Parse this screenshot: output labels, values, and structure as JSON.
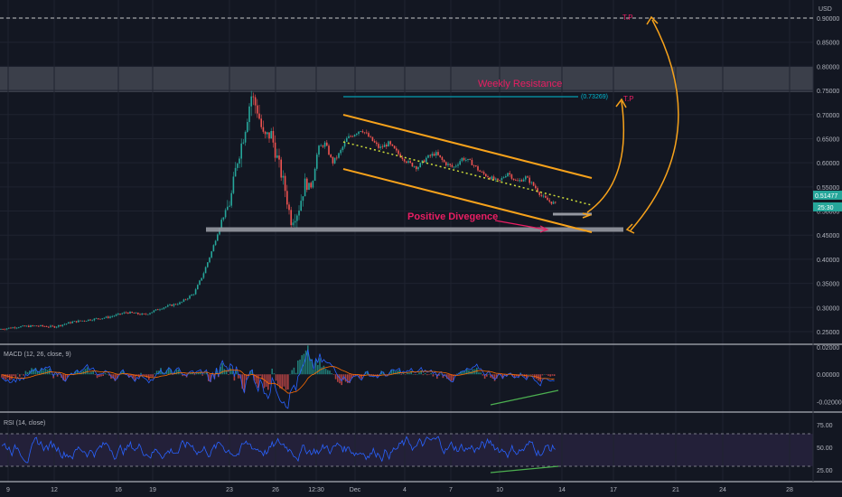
{
  "chart_data": [
    {
      "type": "candlestick",
      "currency": "USD",
      "y_ticks": [
        "0.90000",
        "0.85000",
        "0.80000",
        "0.75000",
        "0.70000",
        "0.65000",
        "0.60000",
        "0.55000",
        "0.50000",
        "0.45000",
        "0.40000",
        "0.35000",
        "0.30000",
        "0.25000"
      ],
      "ylim": [
        0.23,
        0.91
      ],
      "x_ticks": [
        "9",
        "12",
        "16",
        "19",
        "23",
        "26",
        "12:30",
        "Dec",
        "4",
        "7",
        "10",
        "14",
        "17",
        "21",
        "24",
        "28"
      ],
      "last_price": "0.51477",
      "countdown": "25:30",
      "fib_label": "(0.73269)",
      "annotations": {
        "weekly_resistance": "Weekly Resistance",
        "positive_divergence": "Positive Divegence",
        "tp1": "T.P",
        "tp2": "T.P"
      },
      "price_path": [
        [
          0,
          0.255
        ],
        [
          20,
          0.26
        ],
        [
          40,
          0.262
        ],
        [
          60,
          0.26
        ],
        [
          80,
          0.27
        ],
        [
          100,
          0.275
        ],
        [
          120,
          0.28
        ],
        [
          140,
          0.29
        ],
        [
          160,
          0.285
        ],
        [
          180,
          0.3
        ],
        [
          200,
          0.31
        ],
        [
          215,
          0.33
        ],
        [
          225,
          0.37
        ],
        [
          235,
          0.42
        ],
        [
          245,
          0.48
        ],
        [
          255,
          0.52
        ],
        [
          262,
          0.6
        ],
        [
          270,
          0.66
        ],
        [
          278,
          0.74
        ],
        [
          285,
          0.71
        ],
        [
          292,
          0.65
        ],
        [
          300,
          0.66
        ],
        [
          308,
          0.6
        ],
        [
          315,
          0.55
        ],
        [
          322,
          0.48
        ],
        [
          330,
          0.5
        ],
        [
          338,
          0.56
        ],
        [
          345,
          0.55
        ],
        [
          352,
          0.63
        ],
        [
          360,
          0.64
        ],
        [
          368,
          0.6
        ],
        [
          376,
          0.62
        ],
        [
          384,
          0.65
        ],
        [
          392,
          0.66
        ],
        [
          400,
          0.67
        ],
        [
          410,
          0.65
        ],
        [
          420,
          0.63
        ],
        [
          430,
          0.64
        ],
        [
          440,
          0.62
        ],
        [
          452,
          0.6
        ],
        [
          462,
          0.59
        ],
        [
          472,
          0.61
        ],
        [
          482,
          0.62
        ],
        [
          492,
          0.6
        ],
        [
          502,
          0.59
        ],
        [
          512,
          0.61
        ],
        [
          522,
          0.6
        ],
        [
          532,
          0.58
        ],
        [
          542,
          0.57
        ],
        [
          552,
          0.56
        ],
        [
          562,
          0.58
        ],
        [
          572,
          0.56
        ],
        [
          582,
          0.57
        ],
        [
          592,
          0.55
        ],
        [
          600,
          0.53
        ],
        [
          608,
          0.52
        ],
        [
          615,
          0.515
        ]
      ]
    },
    {
      "type": "line",
      "title": "MACD (12, 26, close, 9)",
      "y_ticks": [
        "0.02000",
        "0.00000",
        "-0.02000"
      ],
      "ylim": [
        -0.025,
        0.02
      ]
    },
    {
      "type": "line",
      "title": "RSI (14, close)",
      "y_ticks": [
        "75.00",
        "50.00",
        "25.00"
      ],
      "ylim": [
        15,
        85
      ],
      "bands": [
        70,
        30
      ]
    }
  ],
  "colors": {
    "background": "#131722",
    "up": "#26a69a",
    "down": "#ef5350",
    "channel": "#f7a21b",
    "annotation": "#e91e63",
    "fib": "#00bcd4",
    "rsi": "#2962ff",
    "divergence": "#4caf50"
  }
}
